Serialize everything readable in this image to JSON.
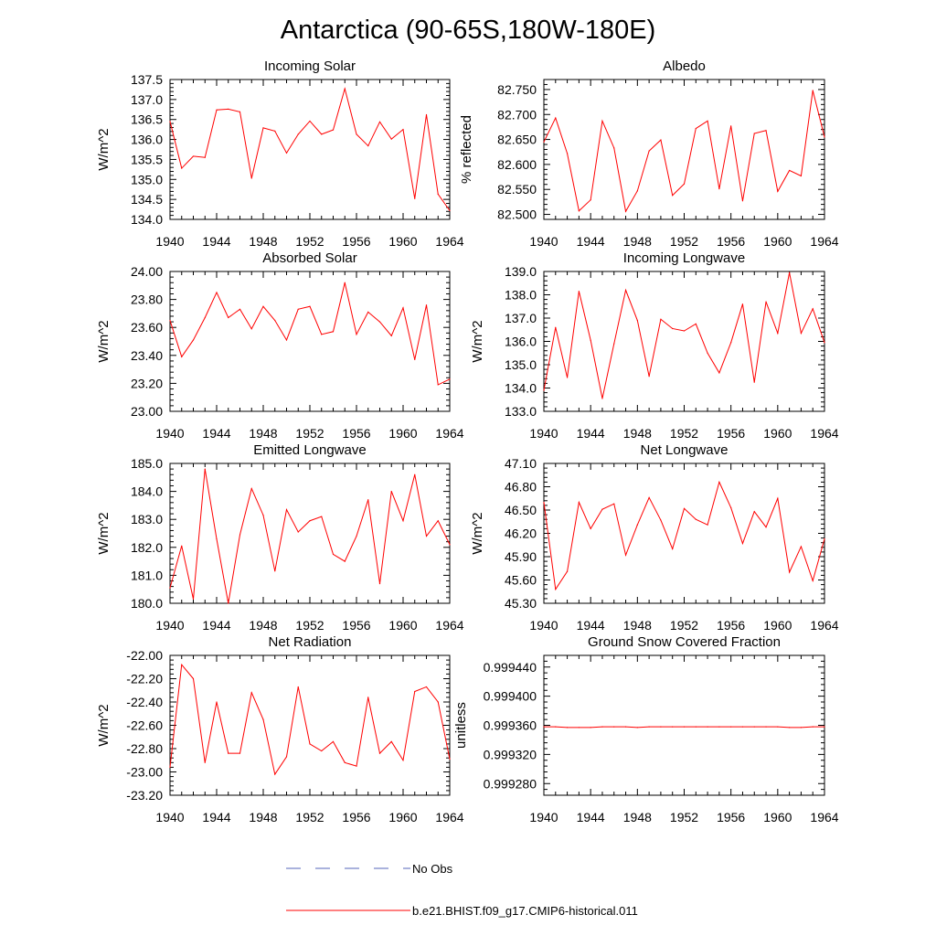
{
  "figure": {
    "title": "Antarctica (90-65S,180W-180E)"
  },
  "legend": {
    "items": [
      {
        "label": "No Obs",
        "color": "#5566bb",
        "style": "dashed"
      },
      {
        "label": "b.e21.BHIST.f09_g17.CMIP6-historical.011",
        "color": "#ff0000",
        "style": "solid"
      }
    ]
  },
  "chart_data": [
    {
      "type": "line",
      "title": "Incoming Solar",
      "ylabel": "W/m^2",
      "xlim": [
        1940,
        1964
      ],
      "ylim": [
        134.0,
        137.5
      ],
      "xticks": [
        "1940",
        "1944",
        "1948",
        "1952",
        "1956",
        "1960",
        "1964"
      ],
      "yticks": [
        "134.0",
        "134.5",
        "135.0",
        "135.5",
        "136.0",
        "136.5",
        "137.0",
        "137.5"
      ],
      "grid": false,
      "series": [
        {
          "color": "#ff0000",
          "x": [
            1940,
            1941,
            1942,
            1943,
            1944,
            1945,
            1946,
            1947,
            1948,
            1949,
            1950,
            1951,
            1952,
            1953,
            1954,
            1955,
            1956,
            1957,
            1958,
            1959,
            1960,
            1961,
            1962,
            1963,
            1964
          ],
          "values": [
            136.45,
            135.28,
            135.58,
            135.55,
            136.74,
            136.76,
            136.69,
            135.03,
            136.29,
            136.21,
            135.66,
            136.13,
            136.46,
            136.13,
            136.24,
            137.27,
            136.13,
            135.84,
            136.44,
            136.01,
            136.25,
            134.52,
            136.62,
            134.63,
            134.22
          ]
        }
      ]
    },
    {
      "type": "line",
      "title": "Albedo",
      "ylabel": "% reflected",
      "xlim": [
        1940,
        1964
      ],
      "ylim": [
        82.49,
        82.77
      ],
      "xticks": [
        "1940",
        "1944",
        "1948",
        "1952",
        "1956",
        "1960",
        "1964"
      ],
      "yticks": [
        "82.500",
        "82.550",
        "82.600",
        "82.650",
        "82.700",
        "82.750"
      ],
      "grid": false,
      "series": [
        {
          "color": "#ff0000",
          "x": [
            1940,
            1941,
            1942,
            1943,
            1944,
            1945,
            1946,
            1947,
            1948,
            1949,
            1950,
            1951,
            1952,
            1953,
            1954,
            1955,
            1956,
            1957,
            1958,
            1959,
            1960,
            1961,
            1962,
            1963,
            1964
          ],
          "values": [
            82.645,
            82.693,
            82.622,
            82.507,
            82.529,
            82.687,
            82.633,
            82.506,
            82.547,
            82.627,
            82.649,
            82.538,
            82.561,
            82.672,
            82.687,
            82.551,
            82.677,
            82.527,
            82.662,
            82.668,
            82.546,
            82.588,
            82.577,
            82.748,
            82.655
          ]
        }
      ]
    },
    {
      "type": "line",
      "title": "Absorbed Solar",
      "ylabel": "W/m^2",
      "xlim": [
        1940,
        1964
      ],
      "ylim": [
        23.0,
        24.0
      ],
      "xticks": [
        "1940",
        "1944",
        "1948",
        "1952",
        "1956",
        "1960",
        "1964"
      ],
      "yticks": [
        "23.00",
        "23.20",
        "23.40",
        "23.60",
        "23.80",
        "24.00"
      ],
      "grid": false,
      "series": [
        {
          "color": "#ff0000",
          "x": [
            1940,
            1941,
            1942,
            1943,
            1944,
            1945,
            1946,
            1947,
            1948,
            1949,
            1950,
            1951,
            1952,
            1953,
            1954,
            1955,
            1956,
            1957,
            1958,
            1959,
            1960,
            1961,
            1962,
            1963,
            1964
          ],
          "values": [
            23.65,
            23.39,
            23.51,
            23.67,
            23.85,
            23.67,
            23.73,
            23.59,
            23.75,
            23.65,
            23.51,
            23.73,
            23.75,
            23.55,
            23.57,
            23.92,
            23.55,
            23.71,
            23.64,
            23.54,
            23.74,
            23.37,
            23.76,
            23.19,
            23.23
          ]
        }
      ]
    },
    {
      "type": "line",
      "title": "Incoming Longwave",
      "ylabel": "W/m^2",
      "xlim": [
        1940,
        1964
      ],
      "ylim": [
        133.0,
        139.0
      ],
      "xticks": [
        "1940",
        "1944",
        "1948",
        "1952",
        "1956",
        "1960",
        "1964"
      ],
      "yticks": [
        "133.0",
        "134.0",
        "135.0",
        "136.0",
        "137.0",
        "138.0",
        "139.0"
      ],
      "grid": false,
      "series": [
        {
          "color": "#ff0000",
          "x": [
            1940,
            1941,
            1942,
            1943,
            1944,
            1945,
            1946,
            1947,
            1948,
            1949,
            1950,
            1951,
            1952,
            1953,
            1954,
            1955,
            1956,
            1957,
            1958,
            1959,
            1960,
            1961,
            1962,
            1963,
            1964
          ],
          "values": [
            133.9,
            136.6,
            134.45,
            138.15,
            136.05,
            133.55,
            135.9,
            138.2,
            136.9,
            134.5,
            136.95,
            136.55,
            136.45,
            136.75,
            135.5,
            134.65,
            135.95,
            137.6,
            134.25,
            137.7,
            136.35,
            138.95,
            136.35,
            137.4,
            135.95
          ]
        }
      ]
    },
    {
      "type": "line",
      "title": "Emitted Longwave",
      "ylabel": "W/m^2",
      "xlim": [
        1940,
        1964
      ],
      "ylim": [
        180.0,
        185.0
      ],
      "xticks": [
        "1940",
        "1944",
        "1948",
        "1952",
        "1956",
        "1960",
        "1964"
      ],
      "yticks": [
        "180.0",
        "181.0",
        "182.0",
        "183.0",
        "184.0",
        "185.0"
      ],
      "grid": false,
      "series": [
        {
          "color": "#ff0000",
          "x": [
            1940,
            1941,
            1942,
            1943,
            1944,
            1945,
            1946,
            1947,
            1948,
            1949,
            1950,
            1951,
            1952,
            1953,
            1954,
            1955,
            1956,
            1957,
            1958,
            1959,
            1960,
            1961,
            1962,
            1963,
            1964
          ],
          "values": [
            180.55,
            182.05,
            180.15,
            184.8,
            182.3,
            180.0,
            182.45,
            184.1,
            183.15,
            181.15,
            183.35,
            182.55,
            182.95,
            183.1,
            181.75,
            181.5,
            182.4,
            183.7,
            180.7,
            184.0,
            182.95,
            184.6,
            182.4,
            182.95,
            182.1
          ]
        }
      ]
    },
    {
      "type": "line",
      "title": "Net Longwave",
      "ylabel": "W/m^2",
      "xlim": [
        1940,
        1964
      ],
      "ylim": [
        45.3,
        47.1
      ],
      "xticks": [
        "1940",
        "1944",
        "1948",
        "1952",
        "1956",
        "1960",
        "1964"
      ],
      "yticks": [
        "45.30",
        "45.60",
        "45.90",
        "46.20",
        "46.50",
        "46.80",
        "47.10"
      ],
      "grid": false,
      "series": [
        {
          "color": "#ff0000",
          "x": [
            1940,
            1941,
            1942,
            1943,
            1944,
            1945,
            1946,
            1947,
            1948,
            1949,
            1950,
            1951,
            1952,
            1953,
            1954,
            1955,
            1956,
            1957,
            1958,
            1959,
            1960,
            1961,
            1962,
            1963,
            1964
          ],
          "values": [
            46.6,
            45.48,
            45.71,
            46.6,
            46.26,
            46.51,
            46.58,
            45.92,
            46.31,
            46.66,
            46.37,
            46.0,
            46.52,
            46.38,
            46.31,
            46.86,
            46.53,
            46.07,
            46.48,
            46.28,
            46.65,
            45.7,
            46.03,
            45.59,
            46.13
          ]
        }
      ]
    },
    {
      "type": "line",
      "title": "Net Radiation",
      "ylabel": "W/m^2",
      "xlim": [
        1940,
        1964
      ],
      "ylim": [
        -23.2,
        -22.0
      ],
      "xticks": [
        "1940",
        "1944",
        "1948",
        "1952",
        "1956",
        "1960",
        "1964"
      ],
      "yticks": [
        "-23.20",
        "-23.00",
        "-22.80",
        "-22.60",
        "-22.40",
        "-22.20",
        "-22.00"
      ],
      "grid": false,
      "series": [
        {
          "color": "#ff0000",
          "x": [
            1940,
            1941,
            1942,
            1943,
            1944,
            1945,
            1946,
            1947,
            1948,
            1949,
            1950,
            1951,
            1952,
            1953,
            1954,
            1955,
            1956,
            1957,
            1958,
            1959,
            1960,
            1961,
            1962,
            1963,
            1964
          ],
          "values": [
            -22.96,
            -22.08,
            -22.2,
            -22.92,
            -22.4,
            -22.84,
            -22.84,
            -22.32,
            -22.55,
            -23.02,
            -22.87,
            -22.27,
            -22.76,
            -22.82,
            -22.74,
            -22.92,
            -22.95,
            -22.36,
            -22.84,
            -22.74,
            -22.9,
            -22.31,
            -22.27,
            -22.4,
            -22.89
          ]
        }
      ]
    },
    {
      "type": "line",
      "title": "Ground Snow Covered Fraction",
      "ylabel": "unitless",
      "xlim": [
        1940,
        1964
      ],
      "ylim": [
        0.999264,
        0.999456
      ],
      "xticks": [
        "1940",
        "1944",
        "1948",
        "1952",
        "1956",
        "1960",
        "1964"
      ],
      "yticks": [
        "0.999280",
        "0.999320",
        "0.999360",
        "0.999400",
        "0.999440"
      ],
      "grid": false,
      "series": [
        {
          "color": "#ff0000",
          "x": [
            1940,
            1941,
            1942,
            1943,
            1944,
            1945,
            1946,
            1947,
            1948,
            1949,
            1950,
            1951,
            1952,
            1953,
            1954,
            1955,
            1956,
            1957,
            1958,
            1959,
            1960,
            1961,
            1962,
            1963,
            1964
          ],
          "values": [
            0.999358,
            0.999358,
            0.999357,
            0.999357,
            0.999357,
            0.999358,
            0.999358,
            0.999358,
            0.999357,
            0.999358,
            0.999358,
            0.999358,
            0.999358,
            0.999358,
            0.999358,
            0.999358,
            0.999358,
            0.999358,
            0.999358,
            0.999358,
            0.999358,
            0.999357,
            0.999357,
            0.999358,
            0.999358
          ]
        }
      ]
    }
  ]
}
